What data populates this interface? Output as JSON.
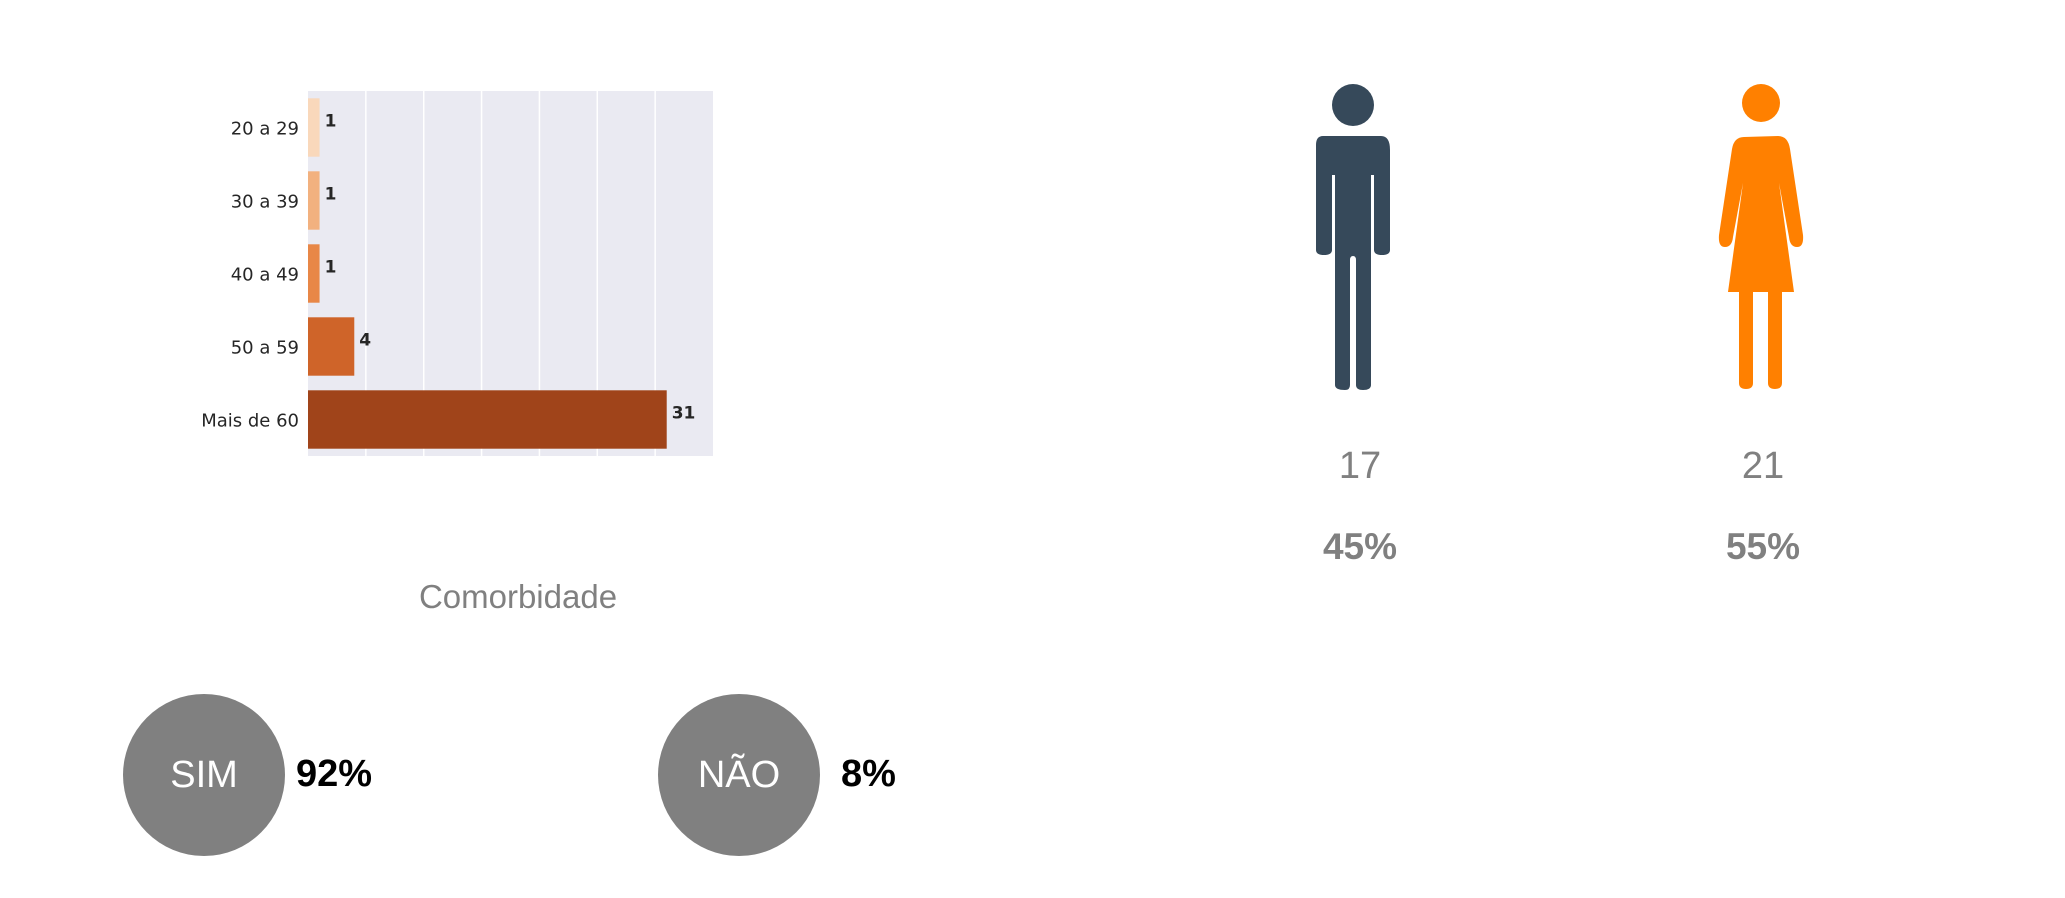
{
  "chart_data": {
    "type": "bar",
    "orientation": "horizontal",
    "categories": [
      "20 a 29",
      "30 a 39",
      "40 a 49",
      "50 a 59",
      "Mais de 60"
    ],
    "values": [
      1,
      1,
      1,
      4,
      31
    ],
    "data_labels": [
      "1",
      "1",
      "1",
      "4",
      "31"
    ],
    "colors": [
      "#f9d8bb",
      "#f2b17f",
      "#e88747",
      "#cf6429",
      "#a0441a"
    ],
    "xlim": [
      0,
      35
    ],
    "background": "#eaeaf2",
    "grid": true
  },
  "comorbidity": {
    "title": "Comorbidade",
    "yes": {
      "label": "SIM",
      "percent": "92%"
    },
    "no": {
      "label": "NÃO",
      "percent": "8%"
    }
  },
  "gender": {
    "male": {
      "icon": "male-person-icon",
      "color": "#36495a",
      "count": "17",
      "percent": "45%"
    },
    "female": {
      "icon": "female-person-icon",
      "color": "#ff8000",
      "count": "21",
      "percent": "55%"
    }
  }
}
